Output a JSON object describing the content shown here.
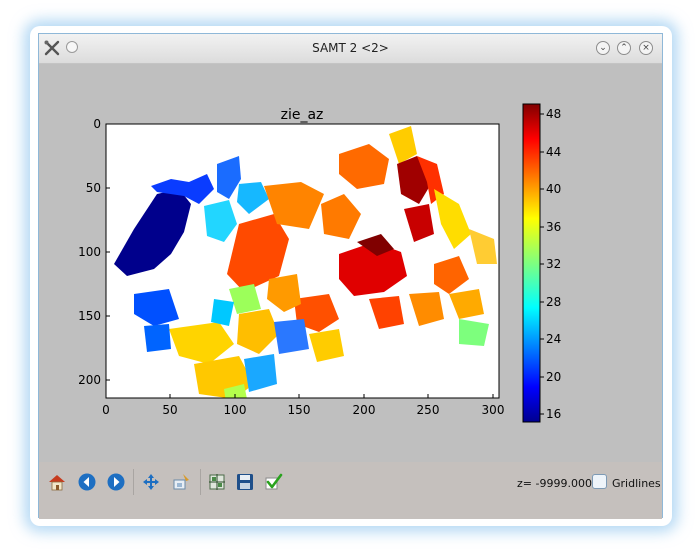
{
  "window": {
    "title": "SAMT 2 <2>"
  },
  "plot": {
    "title": "zie_az",
    "x_ticks": [
      "0",
      "50",
      "100",
      "150",
      "200",
      "250",
      "300"
    ],
    "y_ticks": [
      "0",
      "50",
      "100",
      "150",
      "200"
    ],
    "x_range": [
      0,
      300
    ],
    "y_range": [
      0,
      215
    ],
    "colorbar": {
      "ticks": [
        "48",
        "44",
        "40",
        "36",
        "32",
        "28",
        "24",
        "20",
        "16"
      ],
      "range": [
        15,
        49
      ],
      "colormap": "jet"
    }
  },
  "toolbar": {
    "buttons": [
      "home-icon",
      "back-icon",
      "forward-icon",
      "pan-icon",
      "zoom-icon",
      "configure-subplots-icon",
      "save-icon",
      "apply-icon"
    ],
    "z_readout": "z= -9999.0000",
    "gridlines_label": "Gridlines",
    "gridlines_checked": false
  }
}
